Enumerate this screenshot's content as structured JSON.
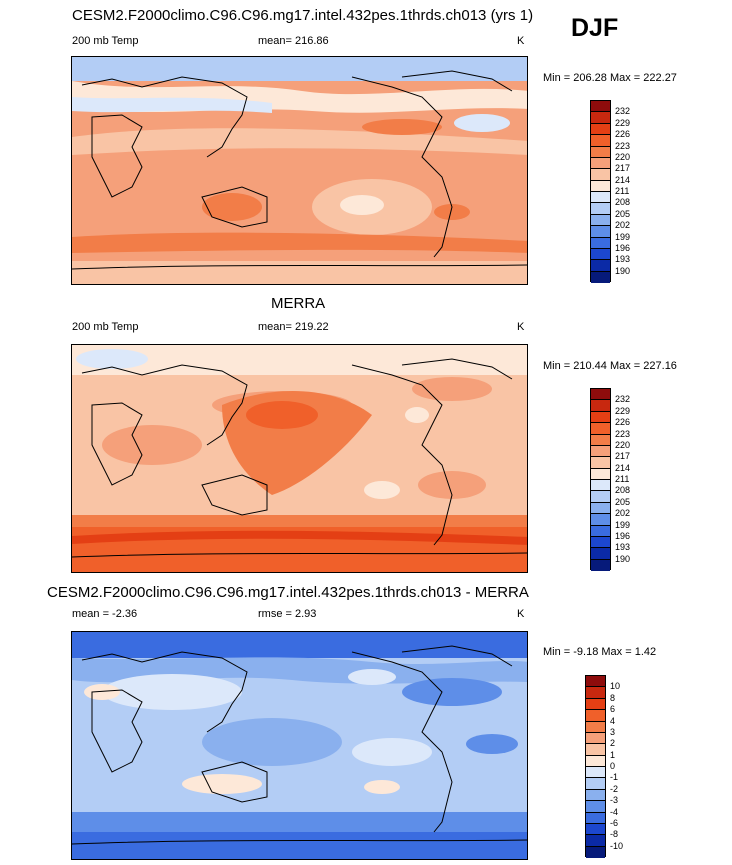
{
  "season": "DJF",
  "panels": [
    {
      "title": "CESM2.F2000climo.C96.C96.mg17.intel.432pes.1thrds.ch013 (yrs 1)",
      "left_label": "200 mb Temp",
      "center_label": "mean= 216.86",
      "units": "K",
      "minmax": "Min = 206.28 Max = 222.27",
      "colorbar_ticks": [
        "232",
        "229",
        "226",
        "223",
        "220",
        "217",
        "214",
        "211",
        "208",
        "205",
        "202",
        "199",
        "196",
        "193",
        "190"
      ],
      "colorbar_colors": [
        "#8e0c0c",
        "#c8280f",
        "#e43f14",
        "#f0602a",
        "#f27d48",
        "#f5a07a",
        "#f9c4a5",
        "#fde8d8",
        "#dce8fa",
        "#b3cdf5",
        "#8ab0ee",
        "#5e8ee8",
        "#3a6ce0",
        "#1c47cf",
        "#0b2aa6",
        "#061a7a"
      ]
    },
    {
      "title": "MERRA",
      "left_label": "200 mb Temp",
      "center_label": "mean= 219.22",
      "units": "K",
      "minmax": "Min = 210.44 Max = 227.16",
      "colorbar_ticks": [
        "232",
        "229",
        "226",
        "223",
        "220",
        "217",
        "214",
        "211",
        "208",
        "205",
        "202",
        "199",
        "196",
        "193",
        "190"
      ],
      "colorbar_colors": [
        "#8e0c0c",
        "#c8280f",
        "#e43f14",
        "#f0602a",
        "#f27d48",
        "#f5a07a",
        "#f9c4a5",
        "#fde8d8",
        "#dce8fa",
        "#b3cdf5",
        "#8ab0ee",
        "#5e8ee8",
        "#3a6ce0",
        "#1c47cf",
        "#0b2aa6",
        "#061a7a"
      ]
    },
    {
      "title": "CESM2.F2000climo.C96.C96.mg17.intel.432pes.1thrds.ch013 - MERRA",
      "left_label": "mean =  -2.36",
      "center_label": "rmse =   2.93",
      "units": "K",
      "minmax": "Min =  -9.18 Max =   1.42",
      "colorbar_ticks": [
        "10",
        "8",
        "6",
        "4",
        "3",
        "2",
        "1",
        "0",
        "-1",
        "-2",
        "-3",
        "-4",
        "-6",
        "-8",
        "-10"
      ],
      "colorbar_colors": [
        "#8e0c0c",
        "#c8280f",
        "#e43f14",
        "#f0602a",
        "#f27d48",
        "#f5a07a",
        "#f9c4a5",
        "#fde8d8",
        "#dce8fa",
        "#b3cdf5",
        "#8ab0ee",
        "#5e8ee8",
        "#3a6ce0",
        "#1c47cf",
        "#0b2aa6",
        "#061a7a"
      ]
    }
  ],
  "map_fills": {
    "p1": {
      "base": "#f5a07a",
      "light": "#f9c4a5",
      "pale": "#fde8d8",
      "cool": "#dce8fa",
      "warm": "#f27d48",
      "warm2": "#f0602a"
    },
    "p2": {
      "base": "#f9c4a5",
      "light": "#fde8d8",
      "mid": "#f5a07a",
      "warm": "#f27d48",
      "warm2": "#f0602a",
      "cool": "#dce8fa"
    },
    "p3": {
      "base": "#b3cdf5",
      "light": "#dce8fa",
      "mid": "#8ab0ee",
      "dark": "#5e8ee8",
      "darker": "#3a6ce0",
      "pale": "#fde8d8"
    }
  }
}
